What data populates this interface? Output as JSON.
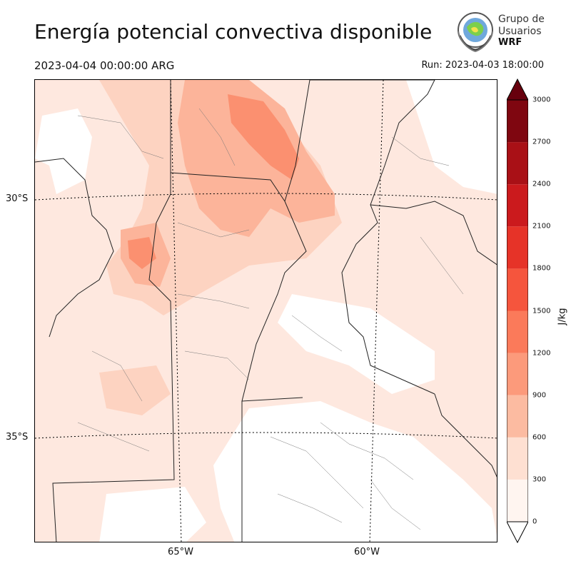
{
  "header": {
    "title": "Energía potencial convectiva disponible",
    "valid_time": "2023-04-04 00:00:00 ARG",
    "run_time": "Run: 2023-04-03 18:00:00"
  },
  "logo": {
    "line1": "Grupo de",
    "line2": "Usuarios",
    "line3": "WRF"
  },
  "map": {
    "field": "CAPE",
    "lat_labels": [
      "30°S",
      "35°S"
    ],
    "lon_labels": [
      "65°W",
      "60°W"
    ],
    "regions": [
      {
        "id": "cape-max-band-north",
        "level": 1500,
        "color": "#fb9070"
      },
      {
        "id": "cape-moderate-center",
        "level": 900,
        "color": "#fcb49a"
      },
      {
        "id": "cape-low-west",
        "level": 600,
        "color": "#fdd3c1"
      },
      {
        "id": "cape-background",
        "level": 300,
        "color": "#fee8df"
      }
    ]
  },
  "colorbar": {
    "unit": "J/kg",
    "ticks": [
      "0",
      "300",
      "600",
      "900",
      "1200",
      "1500",
      "1800",
      "2100",
      "2400",
      "2700",
      "3000"
    ],
    "colors": [
      "#fff5f0",
      "#fee0d2",
      "#fcbba1",
      "#fc9a7b",
      "#fb7a5a",
      "#f5553d",
      "#e63328",
      "#cb1a1d",
      "#a91016",
      "#7f0610"
    ],
    "extend_top_color": "#67000d",
    "extend_bottom_color": "#ffffff"
  }
}
